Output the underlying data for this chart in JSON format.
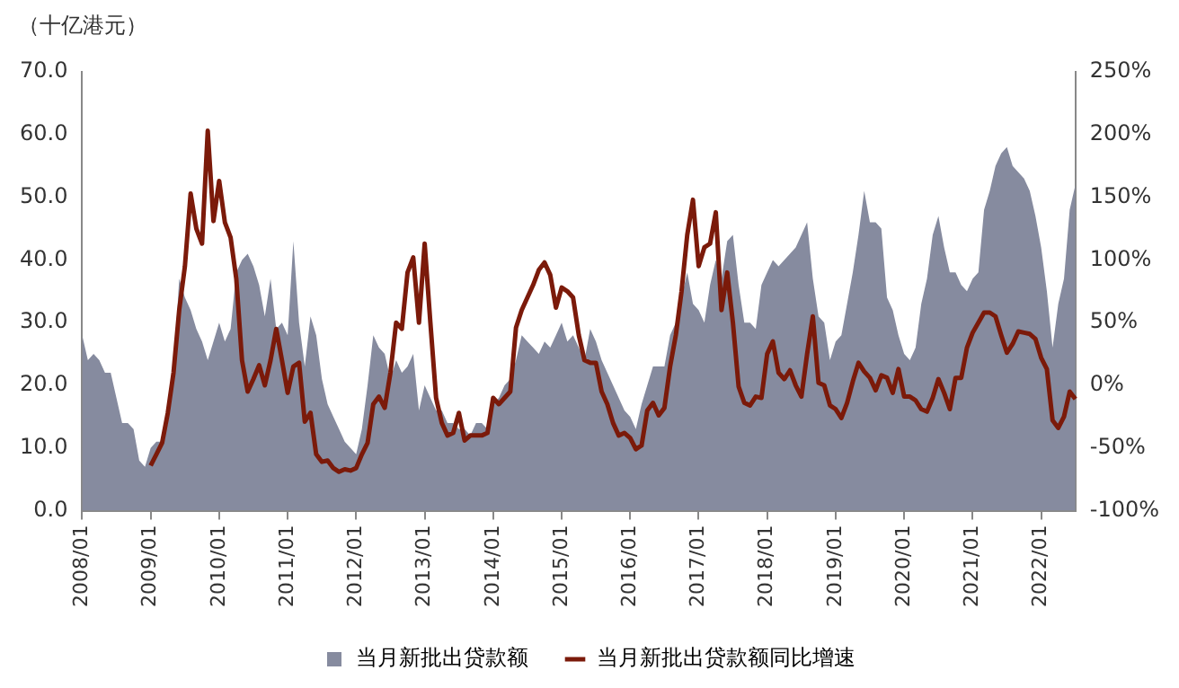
{
  "chart_data": {
    "type": "area",
    "ylabel": "（十亿港元）",
    "categories": [
      "2008/01",
      null,
      null,
      null,
      null,
      null,
      null,
      null,
      null,
      null,
      null,
      null,
      "2009/01",
      null,
      null,
      null,
      null,
      null,
      null,
      null,
      null,
      null,
      null,
      null,
      "2010/01",
      null,
      null,
      null,
      null,
      null,
      null,
      null,
      null,
      null,
      null,
      null,
      "2011/01",
      null,
      null,
      null,
      null,
      null,
      null,
      null,
      null,
      null,
      null,
      null,
      "2012/01",
      null,
      null,
      null,
      null,
      null,
      null,
      null,
      null,
      null,
      null,
      null,
      "2013/01",
      null,
      null,
      null,
      null,
      null,
      null,
      null,
      null,
      null,
      null,
      null,
      "2014/01",
      null,
      null,
      null,
      null,
      null,
      null,
      null,
      null,
      null,
      null,
      null,
      "2015/01",
      null,
      null,
      null,
      null,
      null,
      null,
      null,
      null,
      null,
      null,
      null,
      "2016/01",
      null,
      null,
      null,
      null,
      null,
      null,
      null,
      null,
      null,
      null,
      null,
      "2017/01",
      null,
      null,
      null,
      null,
      null,
      null,
      null,
      null,
      null,
      null,
      null,
      "2018/01",
      null,
      null,
      null,
      null,
      null,
      null,
      null,
      null,
      null,
      null,
      null,
      "2019/01",
      null,
      null,
      null,
      null,
      null,
      null,
      null,
      null,
      null,
      null,
      null,
      "2020/01",
      null,
      null,
      null,
      null,
      null,
      null,
      null,
      null,
      null,
      null,
      null,
      "2021/01",
      null,
      null,
      null,
      null,
      null,
      null,
      null,
      null,
      null,
      null,
      null,
      "2022/01",
      null,
      null,
      null,
      null,
      null,
      null
    ],
    "series": [
      {
        "name": "当月新批出贷款额",
        "type": "area",
        "color": "#868b9f",
        "values": [
          28,
          24,
          25,
          24,
          22,
          22,
          18,
          14,
          14,
          13,
          8,
          7,
          10,
          11,
          11,
          14,
          22,
          37,
          34,
          32,
          29,
          27,
          24,
          27,
          30,
          27,
          29,
          38,
          40,
          41,
          39,
          36,
          31,
          37,
          29,
          30,
          28,
          43,
          30,
          23,
          31,
          28,
          21,
          17,
          15,
          13,
          11,
          10,
          9,
          13,
          20,
          28,
          26,
          25,
          21,
          24,
          22,
          23,
          25,
          16,
          20,
          18,
          16,
          16,
          14,
          14,
          13,
          13,
          12,
          14,
          14,
          13,
          17,
          18,
          20,
          21,
          24,
          28,
          27,
          26,
          25,
          27,
          26,
          28,
          30,
          27,
          28,
          26,
          24,
          29,
          27,
          24,
          22,
          20,
          18,
          16,
          15,
          13,
          17,
          20,
          23,
          23,
          23,
          28,
          30,
          34,
          38,
          33,
          32,
          30,
          36,
          40,
          37,
          43,
          44,
          36,
          30,
          30,
          29,
          36,
          38,
          40,
          39,
          40,
          41,
          42,
          44,
          46,
          37,
          31,
          30,
          24,
          27,
          28,
          33,
          38,
          44,
          51,
          46,
          46,
          45,
          34,
          32,
          28,
          25,
          24,
          26,
          33,
          37,
          44,
          47,
          42,
          38,
          38,
          36,
          35,
          37,
          38,
          48,
          51,
          55,
          57,
          58,
          55,
          54,
          53,
          51,
          47,
          42,
          35,
          26,
          33,
          37,
          48,
          52
        ]
      },
      {
        "name": "当月新批出贷款额同比增速",
        "type": "line",
        "axis": "y2",
        "color": "#7b1a0a",
        "values": [
          null,
          null,
          null,
          null,
          null,
          null,
          null,
          null,
          null,
          null,
          null,
          null,
          -64,
          -55,
          -46,
          -22,
          10,
          60,
          95,
          153,
          125,
          113,
          203,
          131,
          163,
          130,
          118,
          85,
          20,
          -5,
          5,
          16,
          0,
          20,
          45,
          20,
          -6,
          15,
          18,
          -29,
          -22,
          -55,
          -61,
          -60,
          -66,
          -69,
          -67,
          -68,
          -66,
          -55,
          -46,
          -15,
          -9,
          -18,
          10,
          50,
          45,
          90,
          102,
          50,
          113,
          50,
          -10,
          -30,
          -40,
          -38,
          -22,
          -44,
          -40,
          -40,
          -40,
          -38,
          -10,
          -15,
          -10,
          -5,
          46,
          60,
          70,
          80,
          92,
          98,
          88,
          62,
          78,
          75,
          70,
          40,
          20,
          18,
          18,
          -5,
          -15,
          -30,
          -40,
          -38,
          -42,
          -51,
          -48,
          -20,
          -14,
          -24,
          -18,
          15,
          40,
          75,
          120,
          148,
          95,
          110,
          113,
          138,
          60,
          90,
          50,
          -1,
          -14,
          -16,
          -9,
          -10,
          25,
          35,
          10,
          5,
          12,
          0,
          -9,
          25,
          55,
          2,
          0,
          -16,
          -19,
          -26,
          -14,
          3,
          18,
          11,
          6,
          -4,
          8,
          6,
          -6,
          13,
          -9,
          -9,
          -12,
          -19,
          -21,
          -10,
          5,
          -6,
          -19,
          6,
          6,
          30,
          42,
          50,
          58,
          58,
          55,
          40,
          26,
          33,
          43,
          42,
          41,
          37,
          22,
          13,
          -28,
          -34,
          -25,
          -5,
          -11
        ]
      }
    ],
    "ylim": [
      0,
      70
    ],
    "yticks": [
      {
        "value": 0,
        "label": "0.0"
      },
      {
        "value": 10,
        "label": "10.0"
      },
      {
        "value": 20,
        "label": "20.0"
      },
      {
        "value": 30,
        "label": "30.0"
      },
      {
        "value": 40,
        "label": "40.0"
      },
      {
        "value": 50,
        "label": "50.0"
      },
      {
        "value": 60,
        "label": "60.0"
      },
      {
        "value": 70,
        "label": "70.0"
      }
    ],
    "y2lim": [
      -100,
      250
    ],
    "y2ticks": [
      {
        "value": -100,
        "label": "-100%"
      },
      {
        "value": -50,
        "label": "-50%"
      },
      {
        "value": 0,
        "label": "0%"
      },
      {
        "value": 50,
        "label": "50%"
      },
      {
        "value": 100,
        "label": "100%"
      },
      {
        "value": 150,
        "label": "150%"
      },
      {
        "value": 200,
        "label": "200%"
      },
      {
        "value": 250,
        "label": "250%"
      }
    ],
    "legend": "bottom"
  }
}
